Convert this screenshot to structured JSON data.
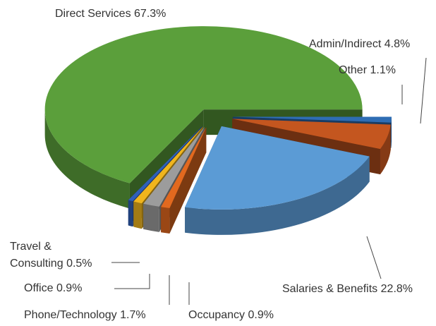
{
  "chart_data": {
    "type": "pie",
    "categories": [
      "Direct Services",
      "Other",
      "Admin/Indirect",
      "Salaries & Benefits",
      "Occupancy",
      "Phone/Technology",
      "Office",
      "Travel & Consulting"
    ],
    "values": [
      67.3,
      1.1,
      4.8,
      22.8,
      0.9,
      1.7,
      0.9,
      0.5
    ],
    "value_labels": [
      "67.3%",
      "1.1%",
      "4.8%",
      "22.8%",
      "0.9%",
      "1.7%",
      "0.9%",
      "0.5%"
    ],
    "colors": [
      "#5b9f3b",
      "#2e6db4",
      "#c4561f",
      "#5b9bd5",
      "#e2691f",
      "#9c9c9c",
      "#f0b51d",
      "#2f5fb8"
    ]
  }
}
